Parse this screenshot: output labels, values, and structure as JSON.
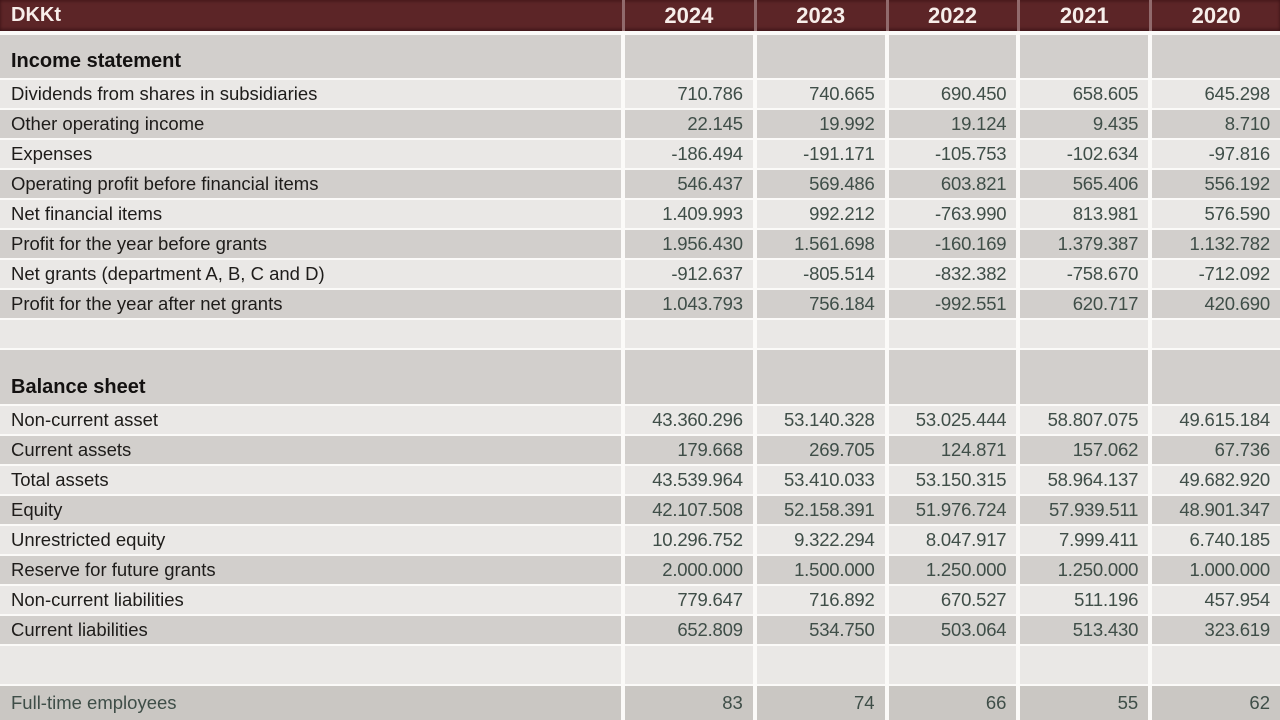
{
  "table": {
    "unit_label": "DKKt",
    "years": [
      "2024",
      "2023",
      "2022",
      "2021",
      "2020"
    ],
    "sections": [
      {
        "title": "Income statement",
        "rows": [
          {
            "label": "Dividends from shares in subsidiaries",
            "values": [
              "710.786",
              "740.665",
              "690.450",
              "658.605",
              "645.298"
            ]
          },
          {
            "label": "Other operating income",
            "values": [
              "22.145",
              "19.992",
              "19.124",
              "9.435",
              "8.710"
            ]
          },
          {
            "label": "Expenses",
            "values": [
              "-186.494",
              "-191.171",
              "-105.753",
              "-102.634",
              "-97.816"
            ]
          },
          {
            "label": "Operating profit before financial items",
            "values": [
              "546.437",
              "569.486",
              "603.821",
              "565.406",
              "556.192"
            ]
          },
          {
            "label": "Net financial items",
            "values": [
              "1.409.993",
              "992.212",
              "-763.990",
              "813.981",
              "576.590"
            ]
          },
          {
            "label": "Profit for the year before grants",
            "values": [
              "1.956.430",
              "1.561.698",
              "-160.169",
              "1.379.387",
              "1.132.782"
            ]
          },
          {
            "label": "Net grants (department A, B, C and D)",
            "values": [
              "-912.637",
              "-805.514",
              "-832.382",
              "-758.670",
              "-712.092"
            ]
          },
          {
            "label": "Profit for the year after net grants",
            "values": [
              "1.043.793",
              "756.184",
              "-992.551",
              "620.717",
              "420.690"
            ]
          }
        ]
      },
      {
        "title": "Balance sheet",
        "rows": [
          {
            "label": "Non-current asset",
            "values": [
              "43.360.296",
              "53.140.328",
              "53.025.444",
              "58.807.075",
              "49.615.184"
            ]
          },
          {
            "label": "Current assets",
            "values": [
              "179.668",
              "269.705",
              "124.871",
              "157.062",
              "67.736"
            ]
          },
          {
            "label": "Total assets",
            "values": [
              "43.539.964",
              "53.410.033",
              "53.150.315",
              "58.964.137",
              "49.682.920"
            ]
          },
          {
            "label": "Equity",
            "values": [
              "42.107.508",
              "52.158.391",
              "51.976.724",
              "57.939.511",
              "48.901.347"
            ]
          },
          {
            "label": "Unrestricted equity",
            "values": [
              "10.296.752",
              "9.322.294",
              "8.047.917",
              "7.999.411",
              "6.740.185"
            ]
          },
          {
            "label": "Reserve for future grants",
            "values": [
              "2.000.000",
              "1.500.000",
              "1.250.000",
              "1.250.000",
              "1.000.000"
            ]
          },
          {
            "label": "Non-current liabilities",
            "values": [
              "779.647",
              "716.892",
              "670.527",
              "511.196",
              "457.954"
            ]
          },
          {
            "label": "Current liabilities",
            "values": [
              "652.809",
              "534.750",
              "503.064",
              "513.430",
              "323.619"
            ]
          }
        ]
      }
    ],
    "footer_row": {
      "label": "Full-time employees",
      "values": [
        "83",
        "74",
        "66",
        "55",
        "62"
      ]
    }
  },
  "colors": {
    "header_bg": "#5c2527",
    "header_text": "#f7eeea",
    "row_light": "#eae8e6",
    "row_gray": "#d2cfcc",
    "footer_bg": "#cac7c3",
    "number_text": "#3f4e48",
    "label_text": "#1e1c1a"
  }
}
